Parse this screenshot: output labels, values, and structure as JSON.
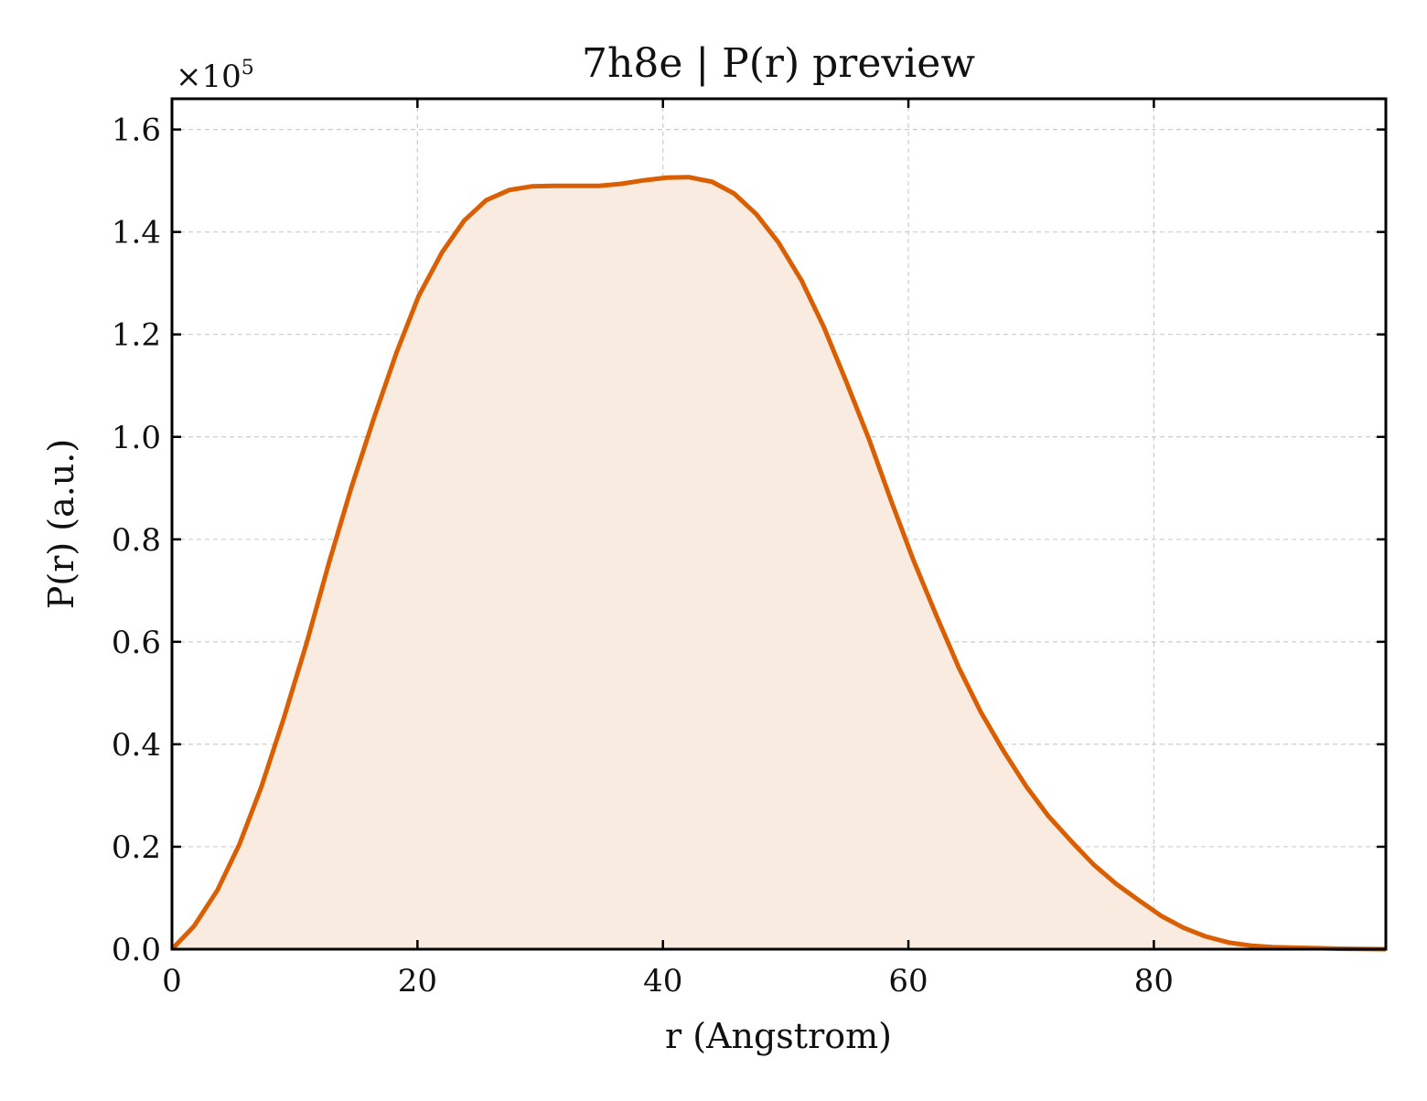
{
  "chart_data": {
    "type": "area",
    "title": "7h8e | P(r) preview",
    "xlabel": "r (Angstrom)",
    "ylabel": "P(r) (a.u.)",
    "y_multiplier": {
      "base": "×10",
      "exponent": "5"
    },
    "xlim": [
      0,
      98.9
    ],
    "ylim": [
      0,
      1.66
    ],
    "x_ticks": [
      0,
      20,
      40,
      60,
      80
    ],
    "x_tick_labels": [
      "0",
      "20",
      "40",
      "60",
      "80"
    ],
    "y_ticks": [
      0,
      0.2,
      0.4,
      0.6,
      0.8,
      1.0,
      1.2,
      1.4,
      1.6
    ],
    "y_tick_labels": [
      "0.0",
      "0.2",
      "0.4",
      "0.6",
      "0.8",
      "1.0",
      "1.2",
      "1.4",
      "1.6"
    ],
    "grid": true,
    "series": [
      {
        "color": "#d95f02",
        "fill_color": "#f9ebe0",
        "x": [
          0,
          1.8,
          3.7,
          5.5,
          7.3,
          9.1,
          11.0,
          12.8,
          14.6,
          16.5,
          18.3,
          20.1,
          22.0,
          23.8,
          25.6,
          27.5,
          29.3,
          31.1,
          33.0,
          34.8,
          36.6,
          38.5,
          40.3,
          42.1,
          44.0,
          45.8,
          47.6,
          49.4,
          51.3,
          53.1,
          54.9,
          56.8,
          58.6,
          60.4,
          62.3,
          64.1,
          65.9,
          67.8,
          69.6,
          71.4,
          73.3,
          75.1,
          76.9,
          78.8,
          80.6,
          82.4,
          84.2,
          86.1,
          87.9,
          89.7,
          91.6,
          93.4,
          95.2,
          97.1,
          98.9
        ],
        "y": [
          0.0,
          0.045,
          0.115,
          0.205,
          0.318,
          0.45,
          0.6,
          0.755,
          0.9,
          1.04,
          1.165,
          1.275,
          1.36,
          1.422,
          1.462,
          1.482,
          1.489,
          1.49,
          1.49,
          1.49,
          1.494,
          1.501,
          1.506,
          1.507,
          1.498,
          1.475,
          1.435,
          1.38,
          1.305,
          1.215,
          1.11,
          0.995,
          0.875,
          0.76,
          0.65,
          0.55,
          0.463,
          0.385,
          0.318,
          0.26,
          0.21,
          0.165,
          0.128,
          0.095,
          0.065,
          0.042,
          0.025,
          0.013,
          0.007,
          0.004,
          0.003,
          0.002,
          0.001,
          0.0005,
          0.0
        ]
      }
    ]
  }
}
